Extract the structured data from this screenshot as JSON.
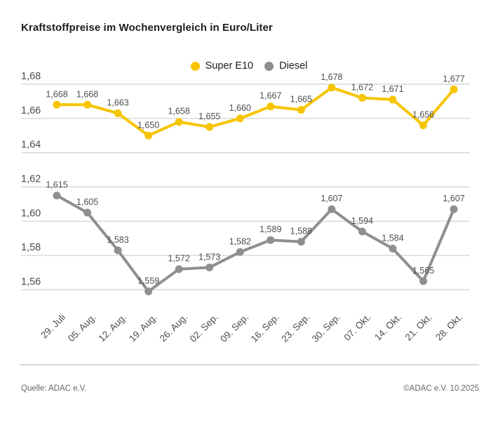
{
  "header": {
    "title": "Kraftstoffpreise im Wochenvergleich in Euro/Liter"
  },
  "chart_data": {
    "type": "line",
    "title": "Kraftstoffpreise im Wochenvergleich in Euro/Liter",
    "unit": "Euro/Liter",
    "categories": [
      "29. Juli",
      "05. Aug.",
      "12. Aug.",
      "19. Aug.",
      "26. Aug.",
      "02. Sep.",
      "09. Sep.",
      "16. Sep.",
      "23. Sep.",
      "30. Sep.",
      "07. Okt.",
      "14. Okt.",
      "21. Okt.",
      "28. Okt."
    ],
    "series": [
      {
        "name": "Super E10",
        "color": "#f6c500",
        "values": [
          1.668,
          1.668,
          1.663,
          1.65,
          1.658,
          1.655,
          1.66,
          1.667,
          1.665,
          1.678,
          1.672,
          1.671,
          1.656,
          1.677
        ]
      },
      {
        "name": "Diesel",
        "color": "#8f8f8f",
        "values": [
          1.615,
          1.605,
          1.583,
          1.559,
          1.572,
          1.573,
          1.582,
          1.589,
          1.588,
          1.607,
          1.594,
          1.584,
          1.565,
          1.607
        ]
      }
    ],
    "yticks": [
      1.56,
      1.58,
      1.6,
      1.62,
      1.64,
      1.66,
      1.68
    ],
    "ylim": [
      1.55,
      1.685
    ],
    "grid": true,
    "legend_position": "top-center",
    "decimal_separator": ",",
    "data_labels": true,
    "gridline_color": "#cfcfcf",
    "label_color": "#4d4d4d"
  },
  "footer": {
    "source": "Quelle: ADAC e.V.",
    "copyright": "©ADAC e.V. 10.2025"
  }
}
